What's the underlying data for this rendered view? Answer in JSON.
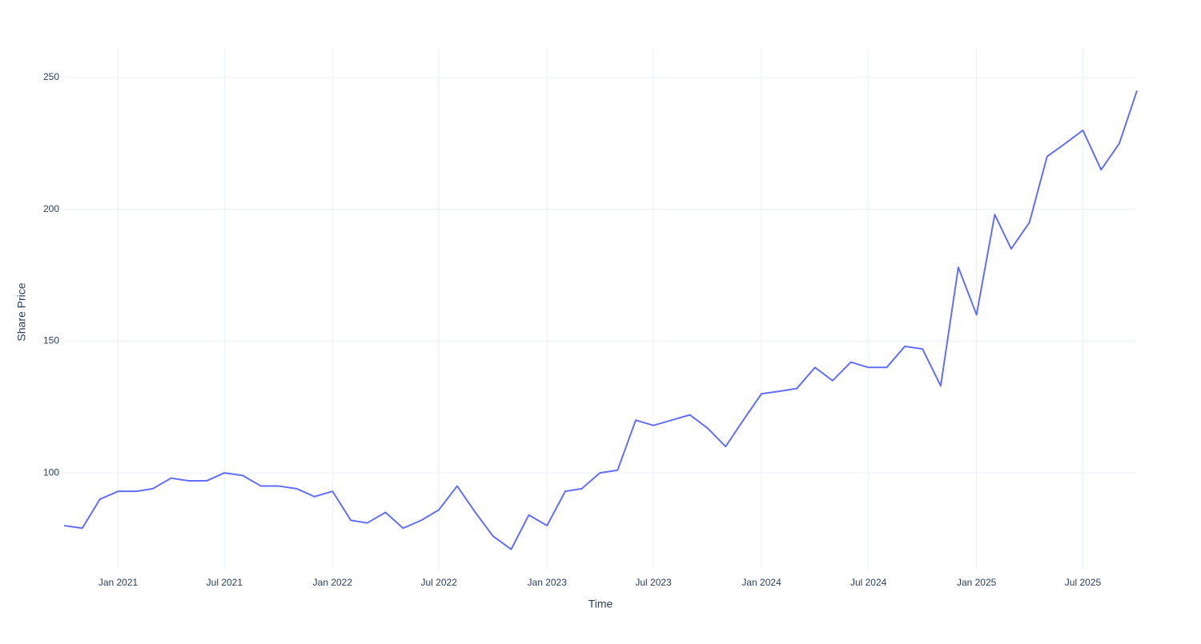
{
  "chart_data": {
    "type": "line",
    "x_label": "Time",
    "y_label": "Share Price",
    "x": [
      "2020-10",
      "2020-11",
      "2020-12",
      "2021-01",
      "2021-02",
      "2021-03",
      "2021-04",
      "2021-05",
      "2021-06",
      "2021-07",
      "2021-08",
      "2021-09",
      "2021-10",
      "2021-11",
      "2021-12",
      "2022-01",
      "2022-02",
      "2022-03",
      "2022-04",
      "2022-05",
      "2022-06",
      "2022-07",
      "2022-08",
      "2022-09",
      "2022-10",
      "2022-11",
      "2022-12",
      "2023-01",
      "2023-02",
      "2023-03",
      "2023-04",
      "2023-05",
      "2023-06",
      "2023-07",
      "2023-08",
      "2023-09",
      "2023-10",
      "2023-11",
      "2023-12",
      "2024-01",
      "2024-02",
      "2024-03",
      "2024-04",
      "2024-05",
      "2024-06",
      "2024-07",
      "2024-08",
      "2024-09",
      "2024-10",
      "2024-11",
      "2024-12",
      "2025-01",
      "2025-02",
      "2025-03",
      "2025-04",
      "2025-05",
      "2025-06",
      "2025-07",
      "2025-08",
      "2025-09",
      "2025-10"
    ],
    "series": [
      {
        "name": "Share Price",
        "color": "#636efa",
        "values": [
          80,
          79,
          90,
          93,
          93,
          94,
          98,
          97,
          97,
          100,
          99,
          95,
          95,
          94,
          91,
          93,
          82,
          81,
          85,
          79,
          82,
          86,
          95,
          85,
          76,
          71,
          84,
          80,
          93,
          94,
          100,
          101,
          120,
          118,
          120,
          122,
          117,
          110,
          120,
          130,
          131,
          132,
          140,
          135,
          142,
          140,
          140,
          148,
          147,
          133,
          178,
          160,
          198,
          185,
          195,
          220,
          225,
          230,
          215,
          225,
          245
        ]
      }
    ],
    "xlim": [
      "2020-10",
      "2025-10"
    ],
    "xticks": [
      {
        "value": "2021-01",
        "label": "Jan 2021"
      },
      {
        "value": "2021-07",
        "label": "Jul 2021"
      },
      {
        "value": "2022-01",
        "label": "Jan 2022"
      },
      {
        "value": "2022-07",
        "label": "Jul 2022"
      },
      {
        "value": "2023-01",
        "label": "Jan 2023"
      },
      {
        "value": "2023-07",
        "label": "Jul 2023"
      },
      {
        "value": "2024-01",
        "label": "Jan 2024"
      },
      {
        "value": "2024-07",
        "label": "Jul 2024"
      },
      {
        "value": "2025-01",
        "label": "Jan 2025"
      },
      {
        "value": "2025-07",
        "label": "Jul 2025"
      }
    ],
    "ylim": [
      63.3,
      261.2
    ],
    "yticks": [
      100,
      150,
      200,
      250
    ],
    "grid": true
  }
}
